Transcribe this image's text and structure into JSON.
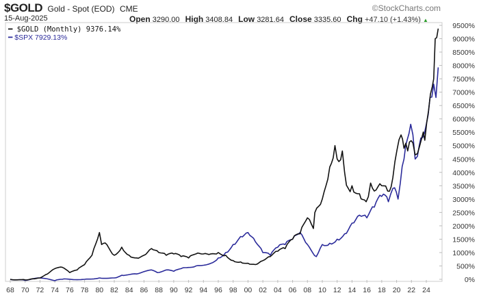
{
  "header": {
    "symbol": "$GOLD",
    "description": "Gold - Spot (EOD)",
    "exchange": "CME",
    "brand": "©StockCharts.com",
    "date": "15-Aug-2025",
    "open_label": "Open",
    "open": "3290.00",
    "high_label": "High",
    "high": "3408.84",
    "low_label": "Low",
    "low": "3281.64",
    "close_label": "Close",
    "close": "3335.60",
    "chg_label": "Chg",
    "chg": "+47.10 (+1.43%)",
    "up_arrow": "▲"
  },
  "chart_data": {
    "type": "line",
    "title": "$GOLD Gold - Spot (EOD) CME",
    "xlabel": "",
    "ylabel": "",
    "xlim": [
      1967.6,
      2026.2
    ],
    "ylim": [
      0,
      9500
    ],
    "x_ticks": [
      "68",
      "70",
      "72",
      "74",
      "76",
      "78",
      "80",
      "82",
      "84",
      "86",
      "88",
      "90",
      "92",
      "94",
      "96",
      "98",
      "00",
      "02",
      "04",
      "06",
      "08",
      "10",
      "12",
      "14",
      "16",
      "18",
      "20",
      "22",
      "24"
    ],
    "y_ticks": [
      "9500%",
      "9000%",
      "8500%",
      "8000%",
      "7500%",
      "7000%",
      "6500%",
      "6000%",
      "5500%",
      "5000%",
      "4500%",
      "4000%",
      "3500%",
      "3000%",
      "2500%",
      "2000%",
      "1500%",
      "1000%",
      "500%",
      "0%"
    ],
    "legend_position": "top-left",
    "series": [
      {
        "name": "$GOLD (Monthly) 9376.14%",
        "color": "#111111",
        "x": [
          1968,
          1970,
          1971,
          1972,
          1973,
          1974,
          1975,
          1976,
          1977,
          1978,
          1979,
          1980,
          1980.3,
          1981,
          1982,
          1983,
          1984,
          1985,
          1986,
          1987,
          1988,
          1989,
          1990,
          1991,
          1992,
          1993,
          1994,
          1995,
          1996,
          1997,
          1998,
          1999,
          2000,
          2001,
          2002,
          2003,
          2004,
          2005,
          2006,
          2007,
          2008,
          2008.8,
          2009,
          2010,
          2011,
          2011.7,
          2012,
          2012.7,
          2013,
          2013.5,
          2014,
          2015,
          2015.9,
          2016.5,
          2017,
          2018,
          2018.8,
          2019.5,
          2020.6,
          2021,
          2021.5,
          2022.2,
          2022.8,
          2023.4,
          2023.8,
          2024.3,
          2024.8,
          2025.0,
          2025.2,
          2025.6
        ],
        "values": [
          0,
          -20,
          20,
          50,
          200,
          400,
          450,
          250,
          350,
          550,
          900,
          1750,
          1300,
          1300,
          900,
          1200,
          900,
          800,
          900,
          1150,
          1000,
          900,
          950,
          850,
          800,
          950,
          950,
          950,
          1000,
          900,
          700,
          650,
          600,
          550,
          700,
          850,
          1050,
          1150,
          1500,
          1700,
          2300,
          1900,
          2500,
          3000,
          4200,
          5000,
          4500,
          4800,
          4000,
          3400,
          3500,
          3200,
          2900,
          3600,
          3300,
          3500,
          3300,
          3800,
          5400,
          4900,
          4800,
          5100,
          4700,
          5300,
          5200,
          6300,
          7200,
          7500,
          9000,
          9376
        ]
      },
      {
        "name": "$SPX 7929.13%",
        "color": "#2a2a9a",
        "x": [
          1968,
          1970,
          1972,
          1974,
          1975,
          1978,
          1980,
          1982,
          1983,
          1985,
          1987,
          1987.8,
          1989,
          1990,
          1991,
          1993,
          1995,
          1996,
          1997,
          1998,
          1999,
          2000,
          2001,
          2002,
          2003,
          2004,
          2005,
          2006,
          2007,
          2008,
          2009.2,
          2010,
          2011,
          2012,
          2013,
          2014,
          2015,
          2016,
          2017,
          2018,
          2018.9,
          2019.5,
          2020.2,
          2020.5,
          2021,
          2021.9,
          2022.5,
          2022.8,
          2023.5,
          2024,
          2024.5,
          2025.0,
          2025.3,
          2025.6
        ],
        "values": [
          0,
          -40,
          50,
          -50,
          0,
          0,
          50,
          50,
          150,
          200,
          350,
          250,
          350,
          300,
          400,
          500,
          600,
          800,
          1000,
          1300,
          1600,
          1750,
          1400,
          1000,
          900,
          1200,
          1300,
          1500,
          1750,
          1300,
          850,
          1300,
          1350,
          1500,
          1700,
          2100,
          2400,
          2300,
          2700,
          3100,
          2900,
          3400,
          3000,
          3600,
          4500,
          5800,
          4500,
          4600,
          5300,
          5800,
          6800,
          7300,
          6800,
          7929
        ]
      }
    ]
  }
}
